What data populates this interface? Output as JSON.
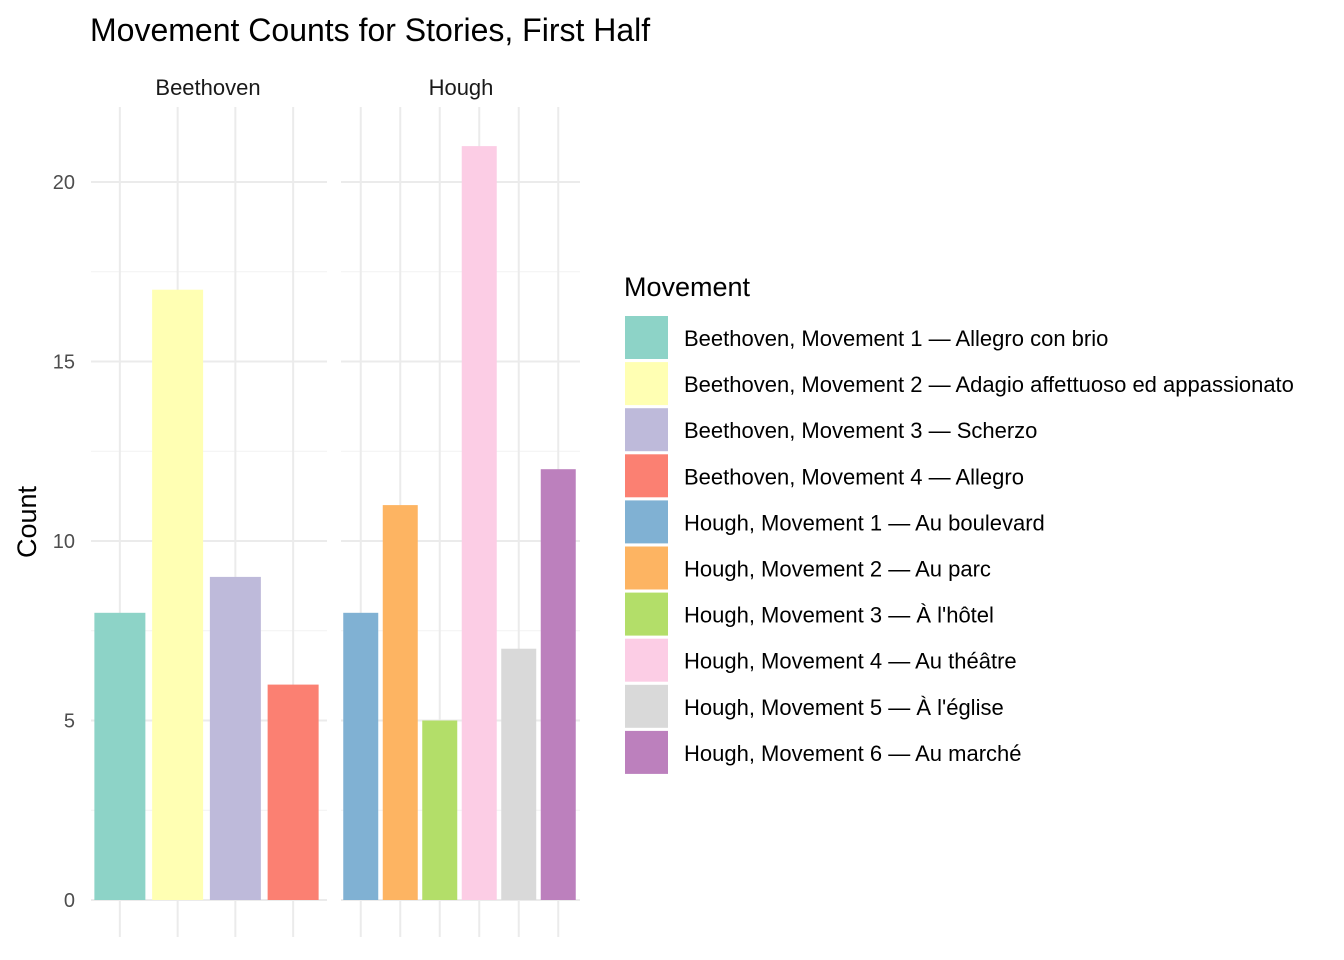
{
  "chart_data": {
    "type": "bar",
    "title": "Movement Counts for Stories, First Half",
    "xlabel": "",
    "ylabel": "Count",
    "ylim": [
      0,
      22
    ],
    "y_ticks": [
      0,
      5,
      10,
      15,
      20
    ],
    "grid": true,
    "legend_position": "right",
    "legend_title": "Movement",
    "facets": [
      {
        "name": "Beethoven",
        "bars": [
          {
            "movement": "Beethoven, Movement 1 — Allegro con brio",
            "value": 8
          },
          {
            "movement": "Beethoven, Movement 2 — Adagio affettuoso ed appassionato",
            "value": 17
          },
          {
            "movement": "Beethoven, Movement 3 — Scherzo",
            "value": 9
          },
          {
            "movement": "Beethoven, Movement 4 — Allegro",
            "value": 6
          }
        ]
      },
      {
        "name": "Hough",
        "bars": [
          {
            "movement": "Hough, Movement 1 — Au boulevard",
            "value": 8
          },
          {
            "movement": "Hough, Movement 2 — Au parc",
            "value": 11
          },
          {
            "movement": "Hough, Movement 3 — À l'hôtel",
            "value": 5
          },
          {
            "movement": "Hough, Movement 4 — Au théâtre",
            "value": 21
          },
          {
            "movement": "Hough, Movement 5 — À l'église",
            "value": 7
          },
          {
            "movement": "Hough, Movement 6 — Au marché",
            "value": 12
          }
        ]
      }
    ],
    "legend": [
      {
        "label": "Beethoven, Movement 1 — Allegro con brio",
        "color": "#8DD3C7"
      },
      {
        "label": "Beethoven, Movement 2 — Adagio affettuoso ed appassionato",
        "color": "#FFFFB3"
      },
      {
        "label": "Beethoven, Movement 3 — Scherzo",
        "color": "#BEBADA"
      },
      {
        "label": "Beethoven, Movement 4 — Allegro",
        "color": "#FB8072"
      },
      {
        "label": "Hough, Movement 1 — Au boulevard",
        "color": "#80B1D3"
      },
      {
        "label": "Hough, Movement 2 — Au parc",
        "color": "#FDB462"
      },
      {
        "label": "Hough, Movement 3 — À l'hôtel",
        "color": "#B3DE69"
      },
      {
        "label": "Hough, Movement 4 — Au théâtre",
        "color": "#FCCDE5"
      },
      {
        "label": "Hough, Movement 5 — À l'église",
        "color": "#D9D9D9"
      },
      {
        "label": "Hough, Movement 6 — Au marché",
        "color": "#BC80BD"
      }
    ]
  }
}
